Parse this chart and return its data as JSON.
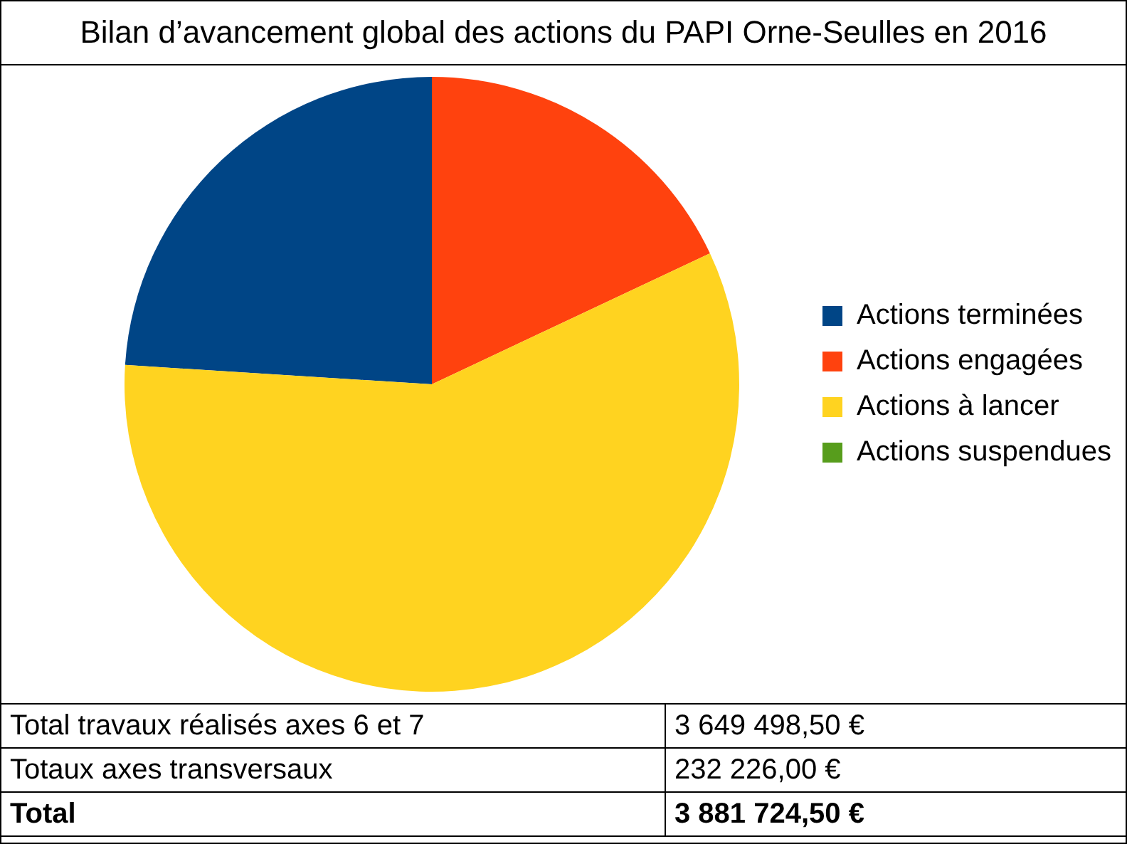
{
  "chart_data": {
    "type": "pie",
    "title": "Bilan d’avancement global des actions du PAPI Orne-Seulles en 2016",
    "categories": [
      "Actions terminées",
      "Actions engagées",
      "Actions à lancer",
      "Actions suspendues"
    ],
    "values": [
      24,
      18,
      58,
      0
    ],
    "colors": [
      "#004586",
      "#ff420e",
      "#ffd320",
      "#579d1c"
    ],
    "legend": "right",
    "annotations": [
      "Total travaux réalisés axes 6 et 7",
      "3 649 498,50 €",
      "Totaux axes transversaux",
      "232 226,00 €",
      "Total",
      "3 881 724,50 €"
    ]
  }
}
